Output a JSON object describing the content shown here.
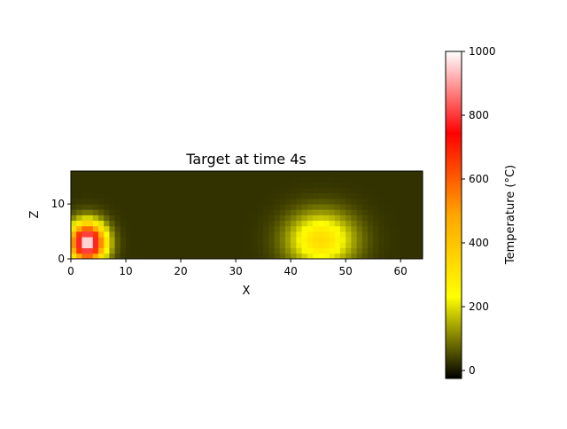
{
  "chart_data": {
    "type": "heatmap",
    "title": "Target at time 4s",
    "xlabel": "X",
    "ylabel": "Z",
    "xlim": [
      0,
      64
    ],
    "ylim": [
      0,
      16
    ],
    "xticks": [
      0,
      10,
      20,
      30,
      40,
      50,
      60
    ],
    "yticks": [
      0,
      10
    ],
    "grid": false,
    "colorbar": {
      "label": "Temperature (°C)",
      "range": [
        -25,
        1000
      ],
      "ticks": [
        0,
        200,
        400,
        600,
        800,
        1000
      ],
      "colormap": [
        "#000000",
        "#ffff00",
        "#ffa500",
        "#ff0000",
        "#ffffff"
      ]
    },
    "background_temperature": 25,
    "hotspots": [
      {
        "name": "",
        "x": 3,
        "z": 3,
        "peak": 1000,
        "sigma_x": 2.2,
        "sigma_z": 2.4
      },
      {
        "name": "",
        "x": 45.5,
        "z": 3.5,
        "peak": 330,
        "sigma_x": 4.2,
        "sigma_z": 3.4
      }
    ]
  }
}
